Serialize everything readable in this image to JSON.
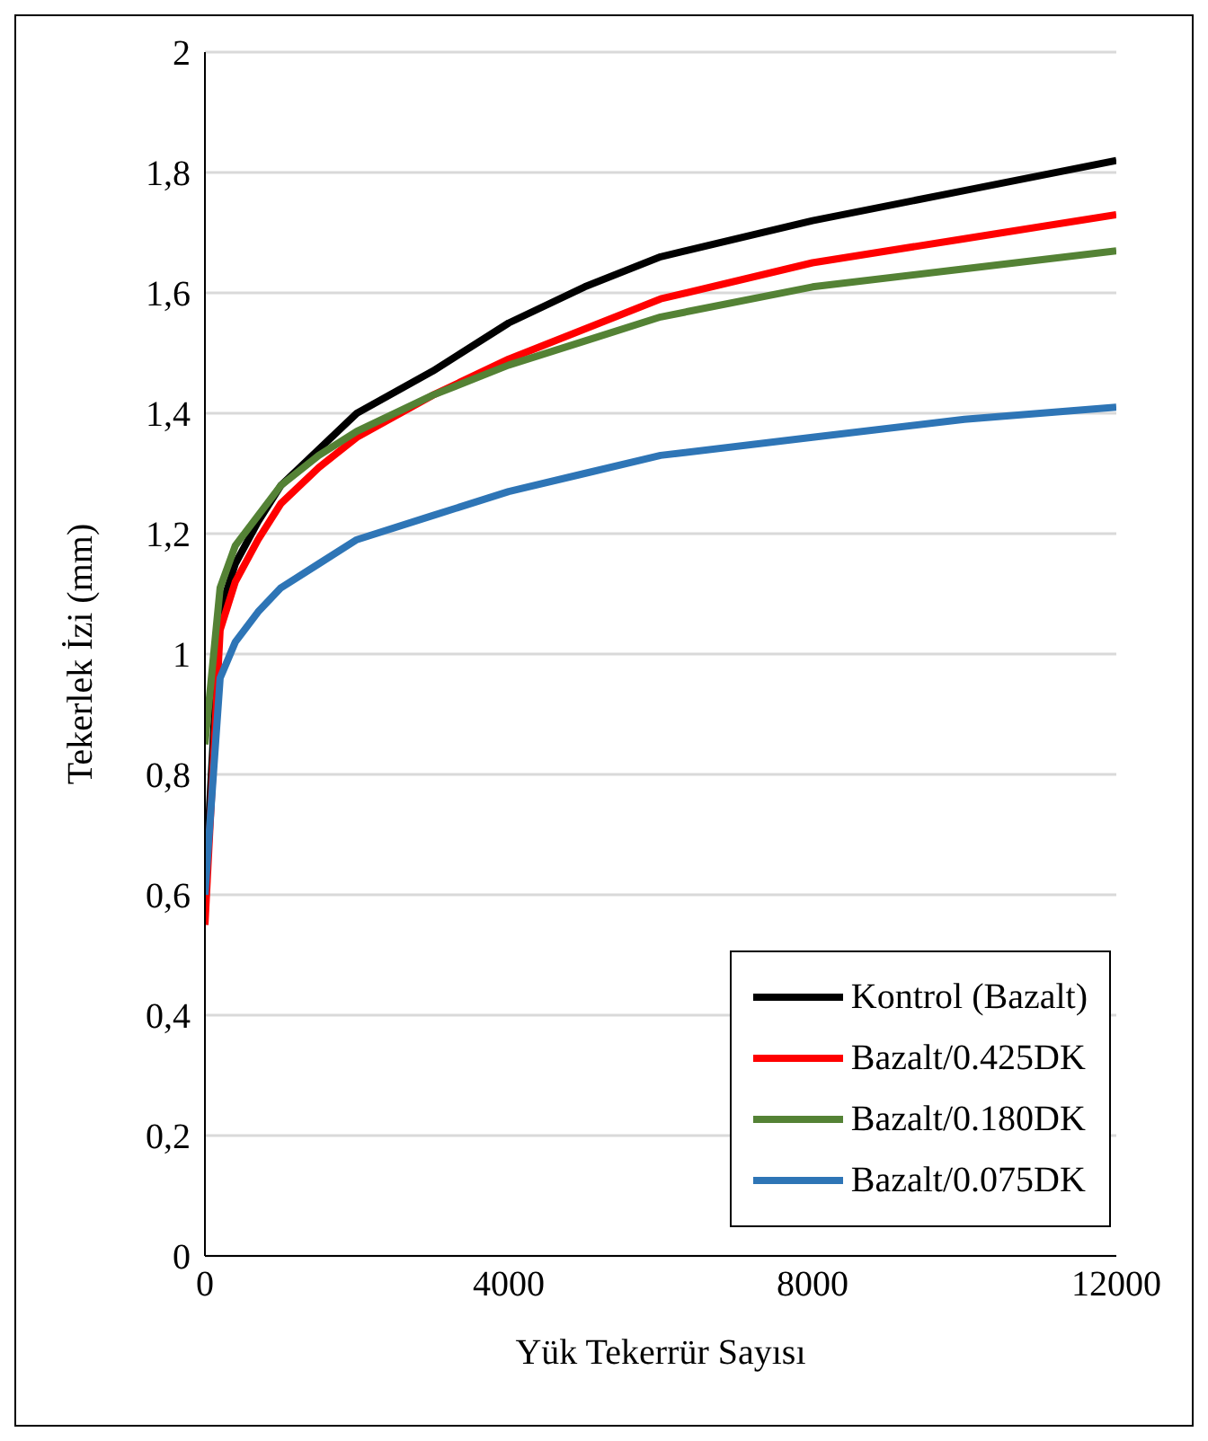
{
  "chart_data": {
    "type": "line",
    "xlabel": "Yük Tekerrür Sayısı",
    "ylabel": "Tekerlek İzi (mm)",
    "x": [
      0,
      200,
      400,
      700,
      1000,
      1500,
      2000,
      3000,
      4000,
      5000,
      6000,
      8000,
      10000,
      12000
    ],
    "series": [
      {
        "name": "Kontrol (Bazalt)",
        "color": "#000000",
        "values": [
          0.6,
          1.07,
          1.15,
          1.22,
          1.28,
          1.34,
          1.4,
          1.47,
          1.55,
          1.61,
          1.66,
          1.72,
          1.77,
          1.82
        ]
      },
      {
        "name": "Bazalt/0.425DK",
        "color": "#ff0000",
        "values": [
          0.55,
          1.04,
          1.12,
          1.19,
          1.25,
          1.31,
          1.36,
          1.43,
          1.49,
          1.54,
          1.59,
          1.65,
          1.69,
          1.73
        ]
      },
      {
        "name": "Bazalt/0.180DK",
        "color": "#548235",
        "values": [
          0.85,
          1.11,
          1.18,
          1.23,
          1.28,
          1.33,
          1.37,
          1.43,
          1.48,
          1.52,
          1.56,
          1.61,
          1.64,
          1.67
        ]
      },
      {
        "name": "Bazalt/0.075DK",
        "color": "#2e75b6",
        "values": [
          0.6,
          0.96,
          1.02,
          1.07,
          1.11,
          1.15,
          1.19,
          1.23,
          1.27,
          1.3,
          1.33,
          1.36,
          1.39,
          1.41
        ]
      }
    ],
    "xlim": [
      0,
      12000
    ],
    "xticks": [
      0,
      4000,
      8000,
      12000
    ],
    "ylim": [
      0,
      2
    ],
    "yticks": [
      0,
      {
        "value": 0.2,
        "label": "0,2"
      },
      {
        "value": 0.4,
        "label": "0,4"
      },
      {
        "value": 0.6,
        "label": "0,6"
      },
      {
        "value": 0.8,
        "label": "0,8"
      },
      1,
      {
        "value": 1.2,
        "label": "1,2"
      },
      {
        "value": 1.4,
        "label": "1,4"
      },
      {
        "value": 1.6,
        "label": "1,6"
      },
      {
        "value": 1.8,
        "label": "1,8"
      },
      2
    ],
    "grid": "y",
    "legend": "bottom right",
    "marker": "none",
    "line_style": "solid"
  }
}
